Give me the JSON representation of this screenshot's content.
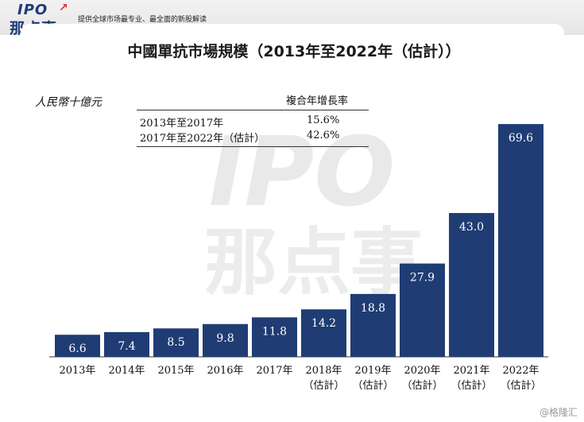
{
  "header": {
    "logo_top": "IPO",
    "logo_bottom": "那点事",
    "tagline": "提供全球市场最专业、最全面的新股解读"
  },
  "watermark": {
    "line1": "IPO",
    "line2": "那点事"
  },
  "footer": {
    "credit": "@格隆汇"
  },
  "chart_data": {
    "type": "bar",
    "title": "中國單抗市場規模（2013年至2022年（估計））",
    "ylabel": "人民幣十億元",
    "categories": [
      [
        "2013年"
      ],
      [
        "2014年"
      ],
      [
        "2015年"
      ],
      [
        "2016年"
      ],
      [
        "2017年"
      ],
      [
        "2018年",
        "（估計）"
      ],
      [
        "2019年",
        "（估計）"
      ],
      [
        "2020年",
        "（估計）"
      ],
      [
        "2021年",
        "（估計）"
      ],
      [
        "2022年",
        "（估計）"
      ]
    ],
    "values": [
      6.6,
      7.4,
      8.5,
      9.8,
      11.8,
      14.2,
      18.8,
      27.9,
      43.0,
      69.6
    ],
    "value_labels": [
      "6.6",
      "7.4",
      "8.5",
      "9.8",
      "11.8",
      "14.2",
      "18.8",
      "27.9",
      "43.0",
      "69.6"
    ],
    "ylim": [
      0,
      72
    ],
    "bar_color": "#1f3c74",
    "label_color": "#ffffff",
    "grid": false,
    "cagr_table": {
      "header": "複合年增長率",
      "rows": [
        {
          "period": "2013年至2017年",
          "rate": "15.6%"
        },
        {
          "period": "2017年至2022年（估計）",
          "rate": "42.6%"
        }
      ]
    }
  }
}
